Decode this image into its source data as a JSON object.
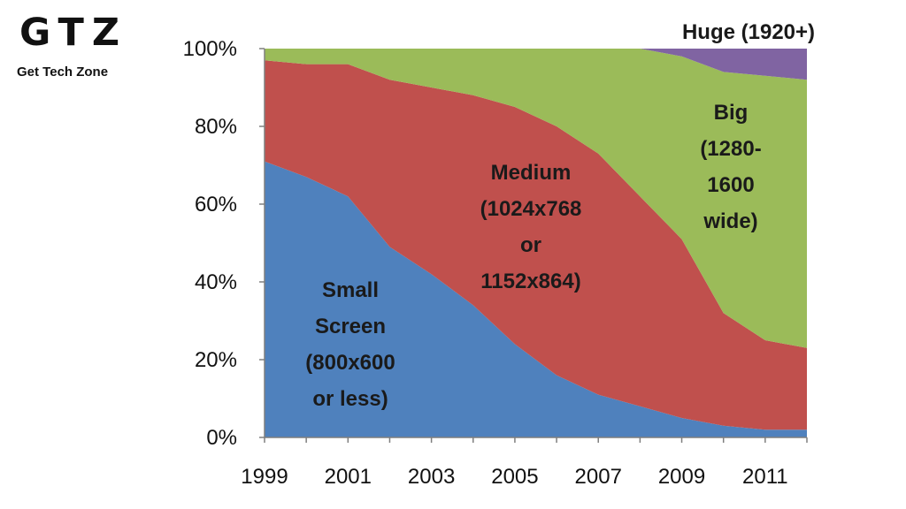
{
  "brand": {
    "logo": "GTZ",
    "tagline": "Get Tech Zone"
  },
  "chart_data": {
    "type": "area",
    "stacked": true,
    "normalized": true,
    "x": [
      1999,
      2000,
      2001,
      2002,
      2003,
      2004,
      2005,
      2006,
      2007,
      2008,
      2009,
      2010,
      2011,
      2012
    ],
    "x_tick_labels": [
      "1999",
      "2001",
      "2003",
      "2005",
      "2007",
      "2009",
      "2011"
    ],
    "y_tick_labels": [
      "0%",
      "20%",
      "40%",
      "60%",
      "80%",
      "100%"
    ],
    "ylim": [
      0,
      100
    ],
    "series": [
      {
        "name": "Small Screen (800x600 or less)",
        "label_lines": [
          "Small",
          "Screen",
          "(800x600",
          "or less)"
        ],
        "color": "#4f81bd",
        "values": [
          71,
          67,
          62,
          49,
          42,
          34,
          24,
          16,
          11,
          8,
          5,
          3,
          2,
          2
        ]
      },
      {
        "name": "Medium (1024x768 or 1152x864)",
        "label_lines": [
          "Medium",
          "(1024x768",
          "or",
          "1152x864)"
        ],
        "color": "#c0504d",
        "values": [
          26,
          29,
          34,
          43,
          48,
          54,
          61,
          64,
          62,
          54,
          46,
          29,
          23,
          21
        ]
      },
      {
        "name": "Big (1280-1600 wide)",
        "label_lines": [
          "Big",
          "(1280-",
          "1600",
          "wide)"
        ],
        "color": "#9bbb59",
        "values": [
          3,
          4,
          4,
          8,
          10,
          12,
          15,
          20,
          27,
          38,
          47,
          62,
          68,
          69
        ]
      },
      {
        "name": "Huge (1920+)",
        "label_lines": [
          "Huge (1920+)"
        ],
        "color": "#8064a2",
        "values": [
          0,
          0,
          0,
          0,
          0,
          0,
          0,
          0,
          0,
          0,
          2,
          6,
          7,
          8
        ]
      }
    ]
  }
}
